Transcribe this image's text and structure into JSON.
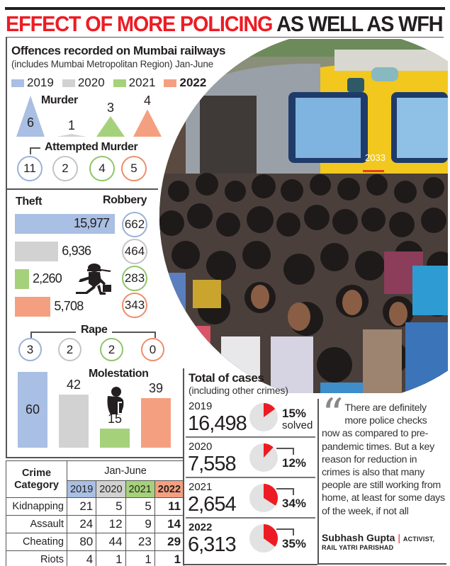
{
  "headline": {
    "part1": "EFFECT OF MORE POLICING",
    "part2": "AS WELL AS WFH"
  },
  "colors": {
    "y2019": "#a9bfe3",
    "y2020": "#d2d2d2",
    "y2021": "#a6d17b",
    "y2022": "#f4a080",
    "accent": "#ed1c24"
  },
  "offences": {
    "title": "Offences recorded on Mumbai railways",
    "subtitle": "(includes Mumbai Metropolitan Region) Jan-June"
  },
  "legend": [
    "2019",
    "2020",
    "2021",
    "2022"
  ],
  "chart_data": [
    {
      "type": "triangle-bar",
      "title": "Murder",
      "categories": [
        "2019",
        "2020",
        "2021",
        "2022"
      ],
      "values": [
        6,
        1,
        3,
        4
      ],
      "labels": [
        "6",
        "1",
        "3",
        "4"
      ]
    },
    {
      "type": "circle-values",
      "title": "Attempted Murder",
      "categories": [
        "2019",
        "2020",
        "2021",
        "2022"
      ],
      "values": [
        11,
        2,
        4,
        5
      ],
      "labels": [
        "11",
        "2",
        "4",
        "5"
      ]
    },
    {
      "type": "bar",
      "orientation": "horizontal",
      "title": "Theft",
      "categories": [
        "2019",
        "2020",
        "2021",
        "2022"
      ],
      "values": [
        15977,
        6936,
        2260,
        5708
      ],
      "labels": [
        "15,977",
        "6,936",
        "2,260",
        "5,708"
      ]
    },
    {
      "type": "circle-values",
      "title": "Robbery",
      "categories": [
        "2019",
        "2020",
        "2021",
        "2022"
      ],
      "values": [
        662,
        464,
        283,
        343
      ],
      "labels": [
        "662",
        "464",
        "283",
        "343"
      ]
    },
    {
      "type": "circle-values",
      "title": "Rape",
      "categories": [
        "2019",
        "2020",
        "2021",
        "2022"
      ],
      "values": [
        3,
        2,
        2,
        0
      ],
      "labels": [
        "3",
        "2",
        "2",
        "0"
      ]
    },
    {
      "type": "bar",
      "orientation": "vertical",
      "title": "Molestation",
      "categories": [
        "2019",
        "2020",
        "2021",
        "2022"
      ],
      "values": [
        60,
        42,
        15,
        39
      ],
      "labels": [
        "60",
        "42",
        "15",
        "39"
      ]
    },
    {
      "type": "table",
      "title": "Crime Category",
      "header_group": "Jan-June",
      "columns": [
        "2019",
        "2020",
        "2021",
        "2022"
      ],
      "rows": [
        {
          "label": "Kidnapping",
          "values": [
            "21",
            "5",
            "5",
            "11"
          ]
        },
        {
          "label": "Assault",
          "values": [
            "24",
            "12",
            "9",
            "14"
          ]
        },
        {
          "label": "Cheating",
          "values": [
            "80",
            "44",
            "23",
            "29"
          ]
        },
        {
          "label": "Riots",
          "values": [
            "4",
            "1",
            "1",
            "1"
          ]
        }
      ]
    },
    {
      "type": "pie",
      "title": "Total of cases",
      "subtitle": "(including other crimes)",
      "rows": [
        {
          "year": "2019",
          "total": "16,498",
          "solved_pct": 15,
          "pct_label": "15%",
          "note": "solved"
        },
        {
          "year": "2020",
          "total": "7,558",
          "solved_pct": 12,
          "pct_label": "12%"
        },
        {
          "year": "2021",
          "total": "2,654",
          "solved_pct": 34,
          "pct_label": "34%"
        },
        {
          "year": "2022",
          "total": "6,313",
          "solved_pct": 35,
          "pct_label": "35%"
        }
      ]
    }
  ],
  "quote": {
    "text": "There are definitely more police checks now as compared to pre-pandemic times. But a key reason for reduction in crimes is also that many people are still working from home, at least for some days of the week, if not all",
    "author": "Subhash Gupta",
    "separator": "|",
    "role": "ACTIVIST,",
    "org": "RAIL YATRI PARISHAD"
  },
  "photo": {
    "train_number": "2033"
  }
}
